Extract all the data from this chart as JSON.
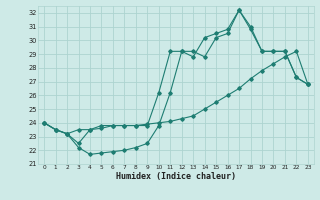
{
  "xlabel": "Humidex (Indice chaleur)",
  "background_color": "#ceeae7",
  "grid_color": "#add4d0",
  "line_color": "#1e7d72",
  "xlim": [
    -0.5,
    23.5
  ],
  "ylim": [
    21,
    32.5
  ],
  "xticks": [
    0,
    1,
    2,
    3,
    4,
    5,
    6,
    7,
    8,
    9,
    10,
    11,
    12,
    13,
    14,
    15,
    16,
    17,
    18,
    19,
    20,
    21,
    22,
    23
  ],
  "yticks": [
    21,
    22,
    23,
    24,
    25,
    26,
    27,
    28,
    29,
    30,
    31,
    32
  ],
  "series1_x": [
    0,
    1,
    2,
    3,
    4,
    5,
    6,
    7,
    8,
    9,
    10,
    11,
    12,
    13,
    14,
    15,
    16,
    17,
    18,
    19,
    20,
    21,
    22,
    23
  ],
  "series1_y": [
    24.0,
    23.5,
    23.2,
    22.2,
    21.7,
    21.8,
    21.9,
    22.0,
    22.2,
    22.5,
    23.8,
    26.2,
    29.2,
    29.2,
    28.8,
    30.2,
    30.5,
    32.2,
    30.8,
    29.2,
    29.2,
    29.2,
    27.3,
    26.8
  ],
  "series2_x": [
    0,
    1,
    2,
    3,
    4,
    5,
    6,
    7,
    8,
    9,
    10,
    11,
    12,
    13,
    14,
    15,
    16,
    17,
    18,
    19,
    20,
    21,
    22,
    23
  ],
  "series2_y": [
    24.0,
    23.5,
    23.2,
    22.5,
    23.5,
    23.6,
    23.8,
    23.8,
    23.8,
    23.9,
    24.0,
    24.1,
    24.3,
    24.5,
    25.0,
    25.5,
    26.0,
    26.5,
    27.2,
    27.8,
    28.3,
    28.8,
    29.2,
    26.8
  ],
  "series3_x": [
    0,
    1,
    2,
    3,
    4,
    5,
    6,
    7,
    8,
    9,
    10,
    11,
    12,
    13,
    14,
    15,
    16,
    17,
    18,
    19,
    20,
    21,
    22,
    23
  ],
  "series3_y": [
    24.0,
    23.5,
    23.2,
    23.5,
    23.5,
    23.8,
    23.8,
    23.8,
    23.8,
    23.8,
    26.2,
    29.2,
    29.2,
    28.8,
    30.2,
    30.5,
    30.8,
    32.2,
    31.0,
    29.2,
    29.2,
    29.2,
    27.3,
    26.8
  ]
}
